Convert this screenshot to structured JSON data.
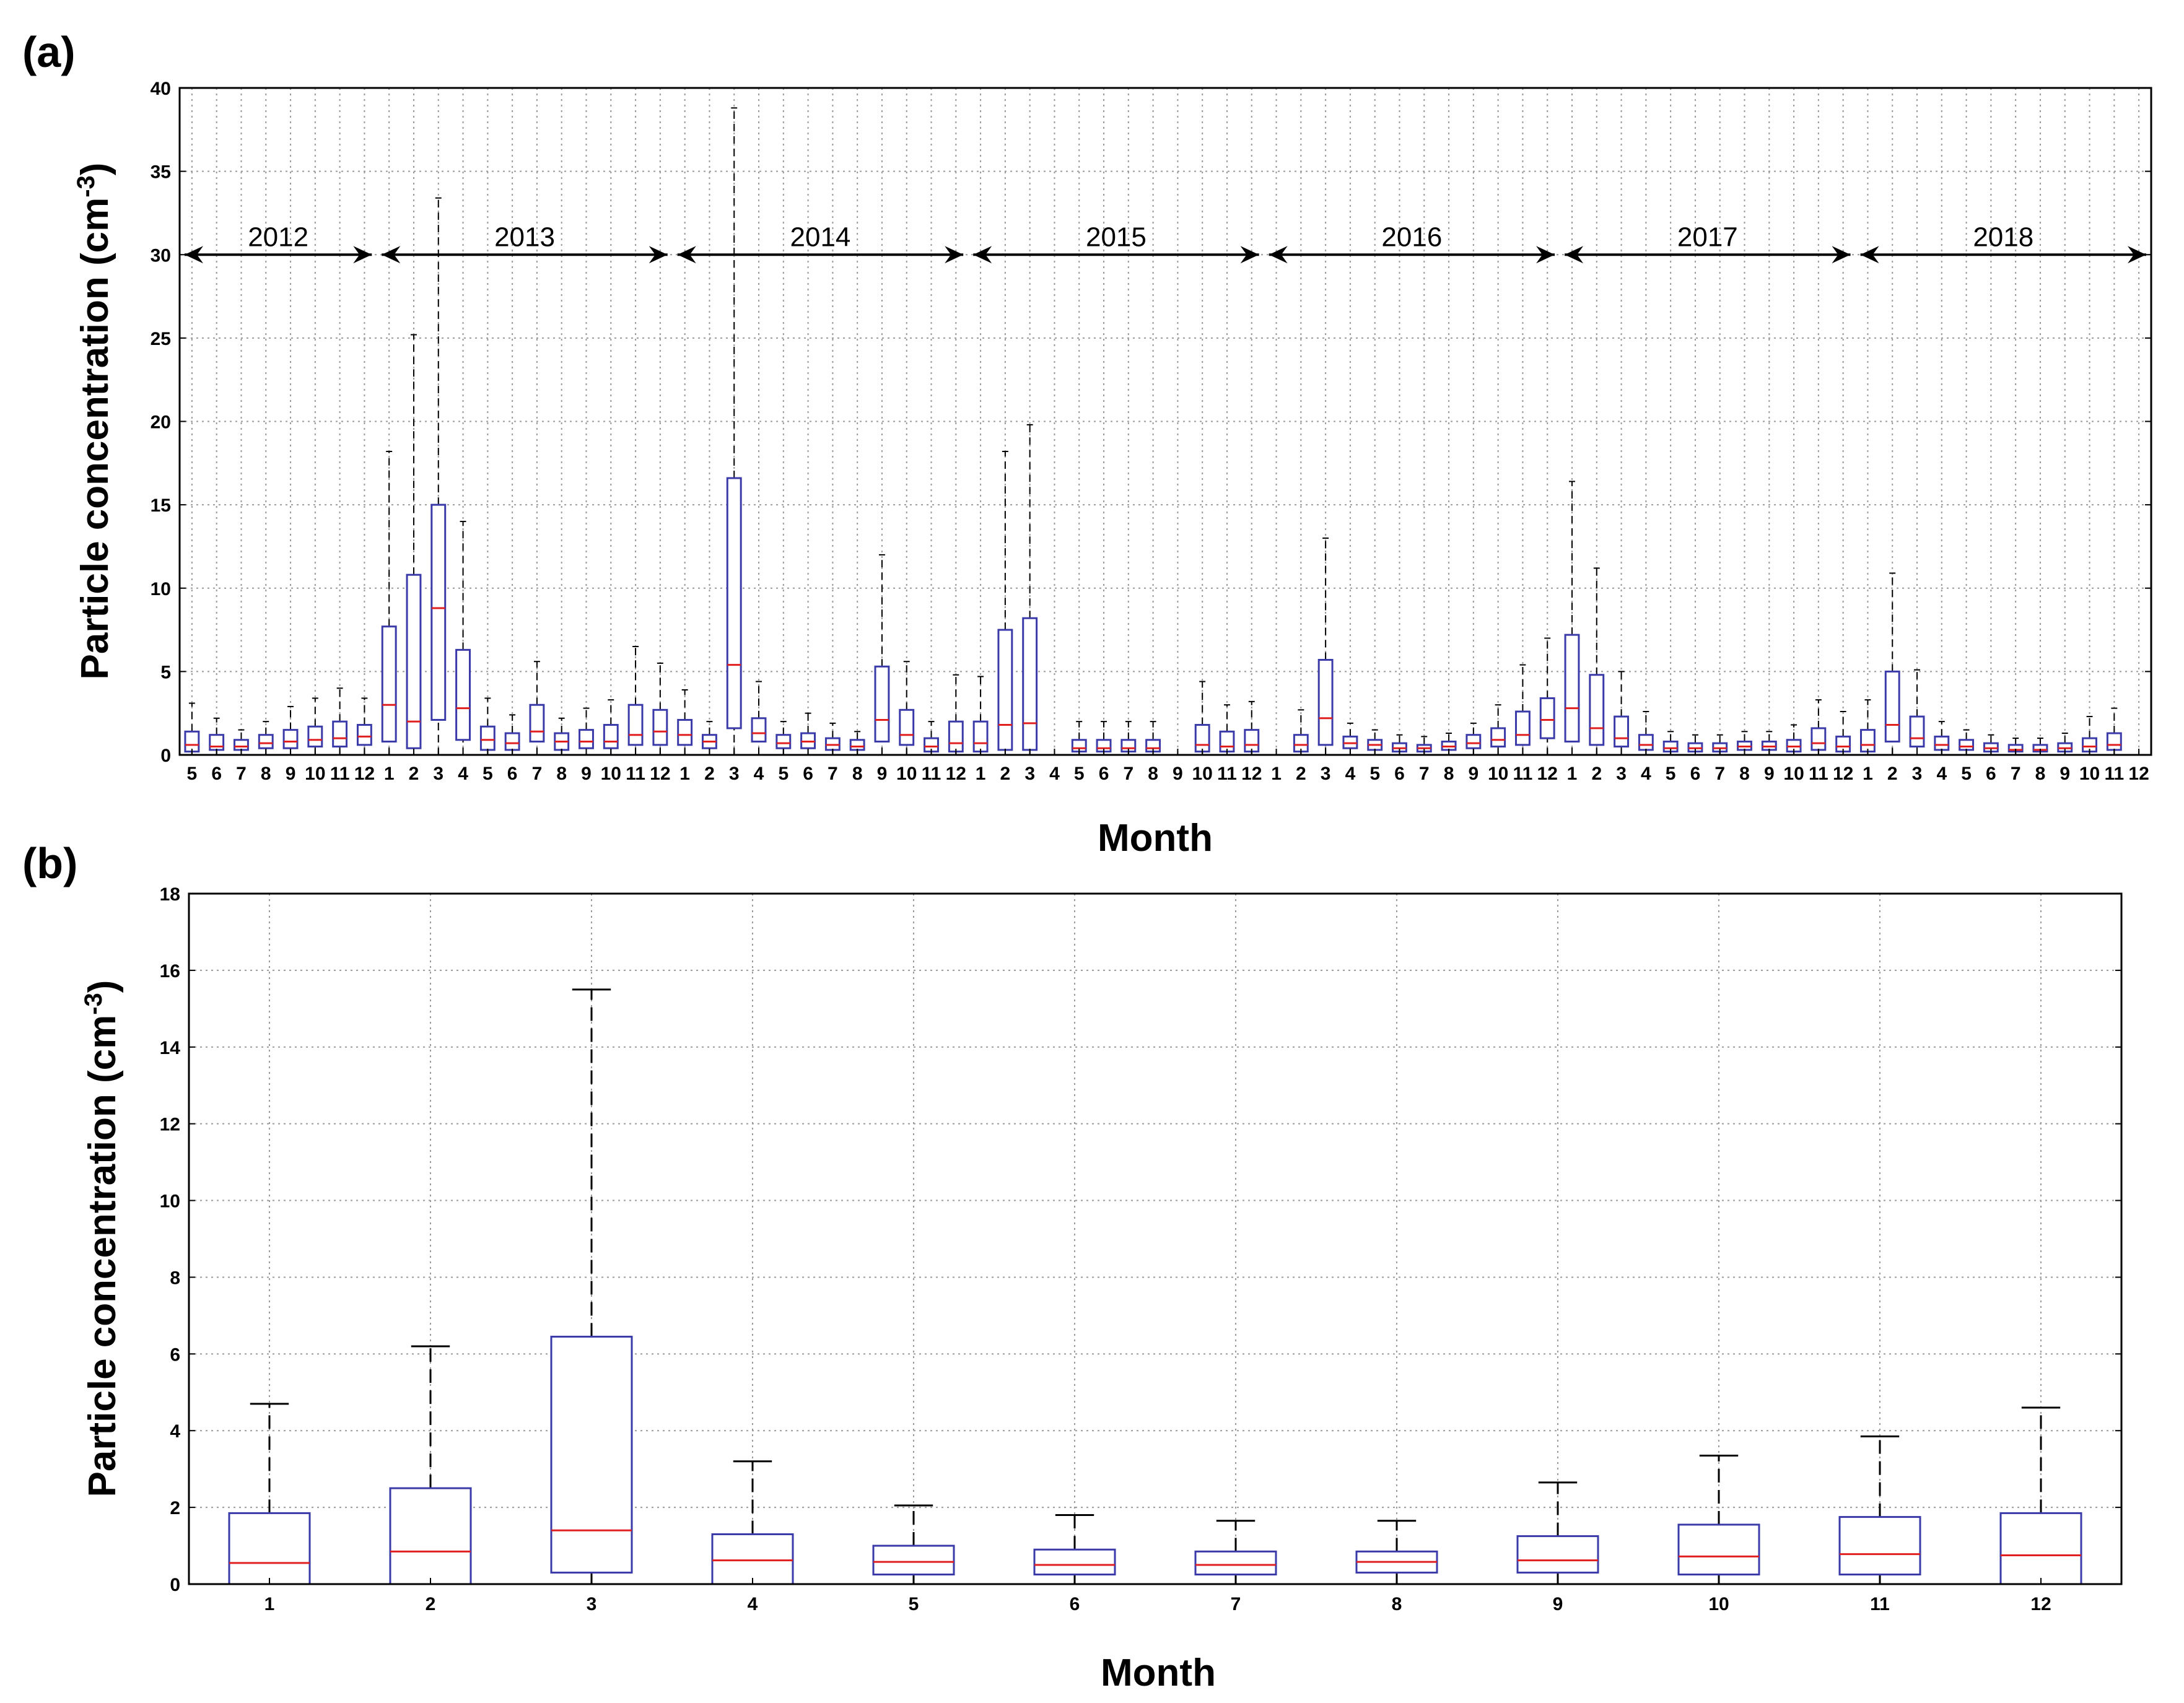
{
  "figure": {
    "panels": [
      {
        "label": "(a)",
        "xlabel": "Month",
        "ylabel": "Particle concentration (cm",
        "ylabel_sup": "-3",
        "ylabel_close": ")"
      },
      {
        "label": "(b)",
        "xlabel": "Month",
        "ylabel": "Particle concentration (cm",
        "ylabel_sup": "-3",
        "ylabel_close": ")"
      }
    ]
  },
  "chart_data": [
    {
      "type": "boxplot",
      "panel": "(a)",
      "xlabel": "Month",
      "ylabel": "Particle concentration (cm-3)",
      "ylim": [
        0,
        40
      ],
      "yticks": [
        0,
        5,
        10,
        15,
        20,
        25,
        30,
        35,
        40
      ],
      "grid": true,
      "colors": {
        "box": "#3a3aa8",
        "median": "#e02020",
        "whisker": "#000000",
        "grid": "#9a9a9a"
      },
      "years": [
        {
          "label": "2012",
          "from_index": 0,
          "to_index": 7
        },
        {
          "label": "2013",
          "from_index": 8,
          "to_index": 19
        },
        {
          "label": "2014",
          "from_index": 20,
          "to_index": 31
        },
        {
          "label": "2015",
          "from_index": 32,
          "to_index": 43
        },
        {
          "label": "2016",
          "from_index": 44,
          "to_index": 55
        },
        {
          "label": "2017",
          "from_index": 56,
          "to_index": 67
        },
        {
          "label": "2018",
          "from_index": 68,
          "to_index": 79
        }
      ],
      "categories": [
        "5",
        "6",
        "7",
        "8",
        "9",
        "10",
        "11",
        "12",
        "1",
        "2",
        "3",
        "4",
        "5",
        "6",
        "7",
        "8",
        "9",
        "10",
        "11",
        "12",
        "1",
        "2",
        "3",
        "4",
        "5",
        "6",
        "7",
        "8",
        "9",
        "10",
        "11",
        "12",
        "1",
        "2",
        "3",
        "4",
        "5",
        "6",
        "7",
        "8",
        "9",
        "10",
        "11",
        "12",
        "1",
        "2",
        "3",
        "4",
        "5",
        "6",
        "7",
        "8",
        "9",
        "10",
        "11",
        "12",
        "1",
        "2",
        "3",
        "4",
        "5",
        "6",
        "7",
        "8",
        "9",
        "10",
        "11",
        "12",
        "1",
        "2",
        "3",
        "4",
        "5",
        "6",
        "7",
        "8",
        "9",
        "10",
        "11",
        "12"
      ],
      "boxes": [
        {
          "whislo": 0,
          "q1": 0.2,
          "med": 0.6,
          "q3": 1.4,
          "whishi": 3.1
        },
        {
          "whislo": 0,
          "q1": 0.3,
          "med": 0.5,
          "q3": 1.2,
          "whishi": 2.2
        },
        {
          "whislo": 0,
          "q1": 0.3,
          "med": 0.5,
          "q3": 0.9,
          "whishi": 1.5
        },
        {
          "whislo": 0,
          "q1": 0.4,
          "med": 0.7,
          "q3": 1.2,
          "whishi": 2.0
        },
        {
          "whislo": 0,
          "q1": 0.4,
          "med": 0.8,
          "q3": 1.5,
          "whishi": 2.9
        },
        {
          "whislo": 0,
          "q1": 0.5,
          "med": 0.9,
          "q3": 1.7,
          "whishi": 3.4
        },
        {
          "whislo": 0,
          "q1": 0.5,
          "med": 1.0,
          "q3": 2.0,
          "whishi": 4.0
        },
        {
          "whislo": 0,
          "q1": 0.6,
          "med": 1.1,
          "q3": 1.8,
          "whishi": 3.4
        },
        {
          "whislo": 0,
          "q1": 0.8,
          "med": 3.0,
          "q3": 7.7,
          "whishi": 18.2
        },
        {
          "whislo": 0,
          "q1": 0.4,
          "med": 2.0,
          "q3": 10.8,
          "whishi": 25.2
        },
        {
          "whislo": 0,
          "q1": 2.1,
          "med": 8.8,
          "q3": 15.0,
          "whishi": 33.4
        },
        {
          "whislo": 0,
          "q1": 0.9,
          "med": 2.8,
          "q3": 6.3,
          "whishi": 14.0
        },
        {
          "whislo": 0,
          "q1": 0.3,
          "med": 0.9,
          "q3": 1.7,
          "whishi": 3.4
        },
        {
          "whislo": 0,
          "q1": 0.3,
          "med": 0.7,
          "q3": 1.3,
          "whishi": 2.4
        },
        {
          "whislo": 0,
          "q1": 0.8,
          "med": 1.4,
          "q3": 3.0,
          "whishi": 5.6
        },
        {
          "whislo": 0,
          "q1": 0.3,
          "med": 0.8,
          "q3": 1.3,
          "whishi": 2.2
        },
        {
          "whislo": 0,
          "q1": 0.4,
          "med": 0.8,
          "q3": 1.5,
          "whishi": 2.8
        },
        {
          "whislo": 0,
          "q1": 0.4,
          "med": 0.8,
          "q3": 1.8,
          "whishi": 3.3
        },
        {
          "whislo": 0,
          "q1": 0.6,
          "med": 1.2,
          "q3": 3.0,
          "whishi": 6.5
        },
        {
          "whislo": 0,
          "q1": 0.6,
          "med": 1.4,
          "q3": 2.7,
          "whishi": 5.5
        },
        {
          "whislo": 0,
          "q1": 0.6,
          "med": 1.2,
          "q3": 2.1,
          "whishi": 3.9
        },
        {
          "whislo": 0,
          "q1": 0.4,
          "med": 0.8,
          "q3": 1.2,
          "whishi": 2.0
        },
        {
          "whislo": 0,
          "q1": 1.6,
          "med": 5.4,
          "q3": 16.6,
          "whishi": 38.8
        },
        {
          "whislo": 0,
          "q1": 0.8,
          "med": 1.3,
          "q3": 2.2,
          "whishi": 4.4
        },
        {
          "whislo": 0,
          "q1": 0.4,
          "med": 0.7,
          "q3": 1.2,
          "whishi": 2.0
        },
        {
          "whislo": 0,
          "q1": 0.4,
          "med": 0.8,
          "q3": 1.3,
          "whishi": 2.5
        },
        {
          "whislo": 0,
          "q1": 0.3,
          "med": 0.6,
          "q3": 1.0,
          "whishi": 1.9
        },
        {
          "whislo": 0,
          "q1": 0.3,
          "med": 0.5,
          "q3": 0.9,
          "whishi": 1.4
        },
        {
          "whislo": 0,
          "q1": 0.8,
          "med": 2.1,
          "q3": 5.3,
          "whishi": 12.0
        },
        {
          "whislo": 0,
          "q1": 0.6,
          "med": 1.2,
          "q3": 2.7,
          "whishi": 5.6
        },
        {
          "whislo": 0,
          "q1": 0.2,
          "med": 0.5,
          "q3": 1.0,
          "whishi": 2.0
        },
        {
          "whislo": 0,
          "q1": 0.2,
          "med": 0.7,
          "q3": 2.0,
          "whishi": 4.8
        },
        {
          "whislo": 0,
          "q1": 0.2,
          "med": 0.7,
          "q3": 2.0,
          "whishi": 4.7
        },
        {
          "whislo": 0,
          "q1": 0.3,
          "med": 1.8,
          "q3": 7.5,
          "whishi": 18.2
        },
        {
          "whislo": 0,
          "q1": 0.3,
          "med": 1.9,
          "q3": 8.2,
          "whishi": 19.8
        },
        {
          "whislo": null,
          "q1": null,
          "med": null,
          "q3": null,
          "whishi": null
        },
        {
          "whislo": 0,
          "q1": 0.2,
          "med": 0.4,
          "q3": 0.9,
          "whishi": 2.0
        },
        {
          "whislo": 0,
          "q1": 0.2,
          "med": 0.4,
          "q3": 0.9,
          "whishi": 2.0
        },
        {
          "whislo": 0,
          "q1": 0.2,
          "med": 0.4,
          "q3": 0.9,
          "whishi": 2.0
        },
        {
          "whislo": 0,
          "q1": 0.2,
          "med": 0.4,
          "q3": 0.9,
          "whishi": 2.0
        },
        {
          "whislo": null,
          "q1": null,
          "med": null,
          "q3": null,
          "whishi": null
        },
        {
          "whislo": 0,
          "q1": 0.2,
          "med": 0.6,
          "q3": 1.8,
          "whishi": 4.4
        },
        {
          "whislo": 0,
          "q1": 0.2,
          "med": 0.5,
          "q3": 1.4,
          "whishi": 3.0
        },
        {
          "whislo": 0,
          "q1": 0.2,
          "med": 0.6,
          "q3": 1.5,
          "whishi": 3.2
        },
        {
          "whislo": null,
          "q1": null,
          "med": null,
          "q3": null,
          "whishi": null
        },
        {
          "whislo": 0,
          "q1": 0.2,
          "med": 0.6,
          "q3": 1.2,
          "whishi": 2.7
        },
        {
          "whislo": 0,
          "q1": 0.6,
          "med": 2.2,
          "q3": 5.7,
          "whishi": 13.0
        },
        {
          "whislo": 0,
          "q1": 0.4,
          "med": 0.7,
          "q3": 1.1,
          "whishi": 1.9
        },
        {
          "whislo": 0,
          "q1": 0.3,
          "med": 0.6,
          "q3": 0.9,
          "whishi": 1.5
        },
        {
          "whislo": 0,
          "q1": 0.2,
          "med": 0.4,
          "q3": 0.7,
          "whishi": 1.2
        },
        {
          "whislo": 0,
          "q1": 0.2,
          "med": 0.4,
          "q3": 0.6,
          "whishi": 1.1
        },
        {
          "whislo": 0,
          "q1": 0.3,
          "med": 0.5,
          "q3": 0.8,
          "whishi": 1.3
        },
        {
          "whislo": 0,
          "q1": 0.4,
          "med": 0.7,
          "q3": 1.2,
          "whishi": 1.9
        },
        {
          "whislo": 0,
          "q1": 0.5,
          "med": 0.9,
          "q3": 1.6,
          "whishi": 3.0
        },
        {
          "whislo": 0,
          "q1": 0.6,
          "med": 1.2,
          "q3": 2.6,
          "whishi": 5.4
        },
        {
          "whislo": 0,
          "q1": 1.0,
          "med": 2.1,
          "q3": 3.4,
          "whishi": 7.0
        },
        {
          "whislo": 0,
          "q1": 0.8,
          "med": 2.8,
          "q3": 7.2,
          "whishi": 16.4
        },
        {
          "whislo": 0,
          "q1": 0.6,
          "med": 1.6,
          "q3": 4.8,
          "whishi": 11.2
        },
        {
          "whislo": 0,
          "q1": 0.5,
          "med": 1.0,
          "q3": 2.3,
          "whishi": 5.0
        },
        {
          "whislo": 0,
          "q1": 0.3,
          "med": 0.6,
          "q3": 1.2,
          "whishi": 2.6
        },
        {
          "whislo": 0,
          "q1": 0.2,
          "med": 0.4,
          "q3": 0.8,
          "whishi": 1.4
        },
        {
          "whislo": 0,
          "q1": 0.2,
          "med": 0.4,
          "q3": 0.7,
          "whishi": 1.2
        },
        {
          "whislo": 0,
          "q1": 0.2,
          "med": 0.4,
          "q3": 0.7,
          "whishi": 1.2
        },
        {
          "whislo": 0,
          "q1": 0.3,
          "med": 0.5,
          "q3": 0.8,
          "whishi": 1.4
        },
        {
          "whislo": 0,
          "q1": 0.3,
          "med": 0.5,
          "q3": 0.8,
          "whishi": 1.4
        },
        {
          "whislo": 0,
          "q1": 0.2,
          "med": 0.5,
          "q3": 0.9,
          "whishi": 1.8
        },
        {
          "whislo": 0,
          "q1": 0.3,
          "med": 0.7,
          "q3": 1.6,
          "whishi": 3.3
        },
        {
          "whislo": 0,
          "q1": 0.2,
          "med": 0.5,
          "q3": 1.1,
          "whishi": 2.6
        },
        {
          "whislo": 0,
          "q1": 0.2,
          "med": 0.6,
          "q3": 1.5,
          "whishi": 3.3
        },
        {
          "whislo": 0,
          "q1": 0.8,
          "med": 1.8,
          "q3": 5.0,
          "whishi": 10.9
        },
        {
          "whislo": 0,
          "q1": 0.5,
          "med": 1.0,
          "q3": 2.3,
          "whishi": 5.1
        },
        {
          "whislo": 0,
          "q1": 0.3,
          "med": 0.6,
          "q3": 1.1,
          "whishi": 2.0
        },
        {
          "whislo": 0,
          "q1": 0.3,
          "med": 0.5,
          "q3": 0.9,
          "whishi": 1.5
        },
        {
          "whislo": 0,
          "q1": 0.2,
          "med": 0.4,
          "q3": 0.7,
          "whishi": 1.2
        },
        {
          "whislo": 0,
          "q1": 0.2,
          "med": 0.3,
          "q3": 0.6,
          "whishi": 1.0
        },
        {
          "whislo": 0,
          "q1": 0.2,
          "med": 0.3,
          "q3": 0.6,
          "whishi": 1.0
        },
        {
          "whislo": 0,
          "q1": 0.2,
          "med": 0.4,
          "q3": 0.7,
          "whishi": 1.3
        },
        {
          "whislo": 0,
          "q1": 0.2,
          "med": 0.5,
          "q3": 1.0,
          "whishi": 2.3
        },
        {
          "whislo": 0,
          "q1": 0.3,
          "med": 0.6,
          "q3": 1.3,
          "whishi": 2.8
        },
        {
          "whislo": null,
          "q1": null,
          "med": null,
          "q3": null,
          "whishi": null
        }
      ]
    },
    {
      "type": "boxplot",
      "panel": "(b)",
      "xlabel": "Month",
      "ylabel": "Particle concentration (cm-3)",
      "ylim": [
        0,
        18
      ],
      "yticks": [
        0,
        2,
        4,
        6,
        8,
        10,
        12,
        14,
        16,
        18
      ],
      "grid": true,
      "colors": {
        "box": "#3a3aa8",
        "median": "#e02020",
        "whisker": "#000000",
        "grid": "#9a9a9a"
      },
      "categories": [
        "1",
        "2",
        "3",
        "4",
        "5",
        "6",
        "7",
        "8",
        "9",
        "10",
        "11",
        "12"
      ],
      "boxes": [
        {
          "whislo": 0,
          "q1": 0.0,
          "med": 0.55,
          "q3": 1.85,
          "whishi": 4.7
        },
        {
          "whislo": 0,
          "q1": 0.0,
          "med": 0.85,
          "q3": 2.5,
          "whishi": 6.2
        },
        {
          "whislo": 0,
          "q1": 0.3,
          "med": 1.4,
          "q3": 6.45,
          "whishi": 15.5
        },
        {
          "whislo": 0,
          "q1": 0.0,
          "med": 0.62,
          "q3": 1.3,
          "whishi": 3.2
        },
        {
          "whislo": 0,
          "q1": 0.25,
          "med": 0.58,
          "q3": 1.0,
          "whishi": 2.05
        },
        {
          "whislo": 0,
          "q1": 0.25,
          "med": 0.5,
          "q3": 0.9,
          "whishi": 1.8
        },
        {
          "whislo": 0,
          "q1": 0.25,
          "med": 0.5,
          "q3": 0.85,
          "whishi": 1.65
        },
        {
          "whislo": 0,
          "q1": 0.3,
          "med": 0.58,
          "q3": 0.85,
          "whishi": 1.65
        },
        {
          "whislo": 0,
          "q1": 0.3,
          "med": 0.62,
          "q3": 1.25,
          "whishi": 2.65
        },
        {
          "whislo": 0,
          "q1": 0.25,
          "med": 0.72,
          "q3": 1.55,
          "whishi": 3.35
        },
        {
          "whislo": 0,
          "q1": 0.25,
          "med": 0.78,
          "q3": 1.75,
          "whishi": 3.85
        },
        {
          "whislo": 0,
          "q1": 0.0,
          "med": 0.75,
          "q3": 1.85,
          "whishi": 4.6
        }
      ]
    }
  ]
}
